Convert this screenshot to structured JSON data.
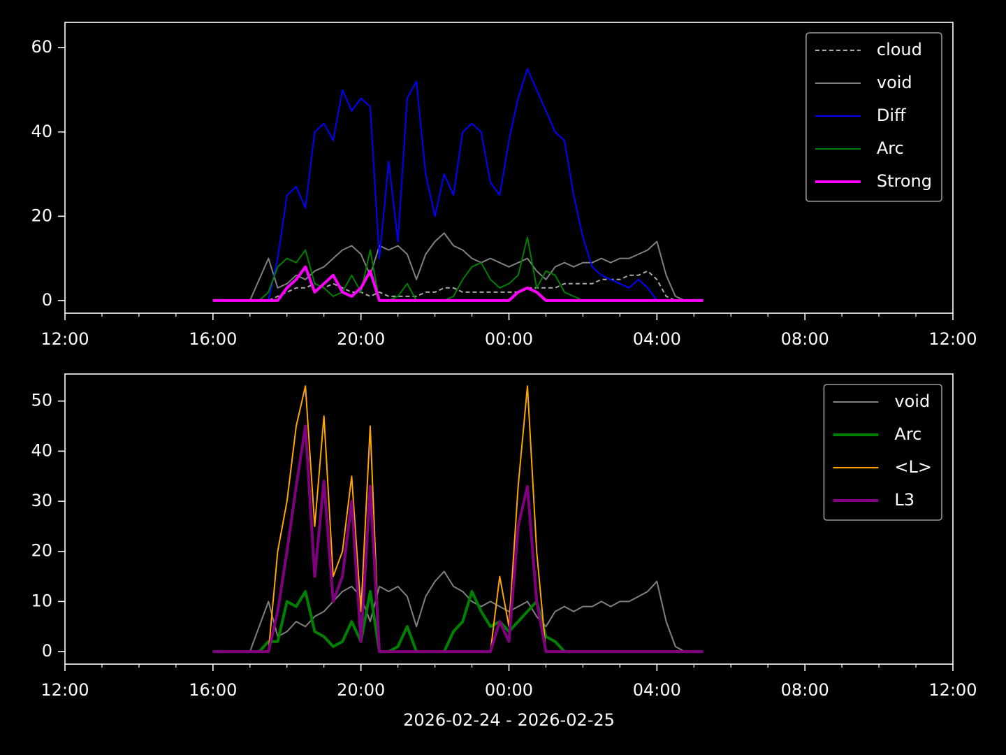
{
  "chart_data": [
    {
      "type": "line",
      "x": [
        4,
        4.25,
        4.5,
        4.75,
        5,
        5.25,
        5.5,
        5.75,
        6,
        6.25,
        6.5,
        6.75,
        7,
        7.25,
        7.5,
        7.75,
        8,
        8.25,
        8.5,
        8.75,
        9,
        9.25,
        9.5,
        9.75,
        10,
        10.25,
        10.5,
        10.75,
        11,
        11.25,
        11.5,
        11.75,
        12,
        12.25,
        12.5,
        12.75,
        13,
        13.25,
        13.5,
        13.75,
        14,
        14.25,
        14.5,
        14.75,
        15,
        15.25,
        15.5,
        15.75,
        16,
        16.25,
        16.5,
        16.75,
        17,
        17.25
      ],
      "series": [
        {
          "name": "cloud",
          "color": "#aaaaaa",
          "linestyle": "dashed",
          "linewidth": 2,
          "values": [
            0,
            0,
            0,
            0,
            0,
            0,
            0,
            1,
            2,
            3,
            3,
            4,
            3,
            4,
            3,
            2,
            2,
            1,
            2,
            1,
            1,
            1,
            1,
            2,
            2,
            3,
            3,
            2,
            2,
            2,
            2,
            2,
            2,
            2,
            3,
            3,
            3,
            3,
            4,
            4,
            4,
            4,
            5,
            5,
            5,
            6,
            6,
            7,
            5,
            1,
            0,
            0,
            0,
            0
          ]
        },
        {
          "name": "void",
          "color": "#808080",
          "linestyle": "solid",
          "linewidth": 2,
          "values": [
            0,
            0,
            0,
            0,
            0,
            5,
            10,
            3,
            4,
            6,
            5,
            7,
            8,
            10,
            12,
            13,
            11,
            6,
            13,
            12,
            13,
            11,
            5,
            11,
            14,
            16,
            13,
            12,
            10,
            9,
            10,
            9,
            8,
            9,
            10,
            7,
            5,
            8,
            9,
            8,
            9,
            9,
            10,
            9,
            10,
            10,
            11,
            12,
            14,
            6,
            1,
            0,
            0,
            0
          ]
        },
        {
          "name": "Diff",
          "color": "#0000ff",
          "linestyle": "solid",
          "linewidth": 2,
          "values": [
            0,
            0,
            0,
            0,
            0,
            0,
            0,
            10,
            25,
            27,
            22,
            40,
            42,
            38,
            50,
            45,
            48,
            46,
            10,
            33,
            14,
            48,
            52,
            30,
            20,
            30,
            25,
            40,
            42,
            40,
            28,
            25,
            38,
            48,
            55,
            50,
            45,
            40,
            38,
            25,
            15,
            8,
            6,
            5,
            4,
            3,
            5,
            3,
            0,
            0,
            0,
            0,
            0,
            0
          ]
        },
        {
          "name": "Arc",
          "color": "#008000",
          "linestyle": "solid",
          "linewidth": 2,
          "values": [
            0,
            0,
            0,
            0,
            0,
            0,
            2,
            8,
            10,
            9,
            12,
            4,
            3,
            1,
            2,
            6,
            2,
            12,
            0,
            0,
            1,
            4,
            0,
            0,
            0,
            0,
            1,
            5,
            8,
            9,
            5,
            3,
            4,
            6,
            15,
            3,
            7,
            6,
            2,
            1,
            0,
            0,
            0,
            0,
            0,
            0,
            0,
            0,
            0,
            0,
            0,
            0,
            0,
            0
          ]
        },
        {
          "name": "Strong",
          "color": "#ff00ff",
          "linestyle": "solid",
          "linewidth": 4,
          "values": [
            0,
            0,
            0,
            0,
            0,
            0,
            0,
            0,
            3,
            5,
            8,
            2,
            4,
            6,
            2,
            1,
            3,
            7,
            0,
            0,
            0,
            0,
            0,
            0,
            0,
            0,
            0,
            0,
            0,
            0,
            0,
            0,
            0,
            2,
            3,
            2,
            0,
            0,
            0,
            0,
            0,
            0,
            0,
            0,
            0,
            0,
            0,
            0,
            0,
            0,
            0,
            0,
            0,
            0
          ]
        }
      ],
      "xlim": [
        0,
        24
      ],
      "xticks": [
        {
          "value": 0,
          "label": "12:00"
        },
        {
          "value": 4,
          "label": "16:00"
        },
        {
          "value": 8,
          "label": "20:00"
        },
        {
          "value": 12,
          "label": "00:00"
        },
        {
          "value": 16,
          "label": "04:00"
        },
        {
          "value": 20,
          "label": "08:00"
        },
        {
          "value": 24,
          "label": "12:00"
        }
      ],
      "xminorticks": [
        1,
        2,
        3,
        5,
        6,
        7,
        9,
        10,
        11,
        13,
        14,
        15,
        17,
        18,
        19,
        21,
        22,
        23
      ],
      "ylim": [
        -3,
        66
      ],
      "yticks": [
        0,
        20,
        40,
        60
      ],
      "legend": "upper right"
    },
    {
      "type": "line",
      "xlabel": "2026-02-24 - 2026-02-25",
      "x": [
        4,
        4.25,
        4.5,
        4.75,
        5,
        5.25,
        5.5,
        5.75,
        6,
        6.25,
        6.5,
        6.75,
        7,
        7.25,
        7.5,
        7.75,
        8,
        8.25,
        8.5,
        8.75,
        9,
        9.25,
        9.5,
        9.75,
        10,
        10.25,
        10.5,
        10.75,
        11,
        11.25,
        11.5,
        11.75,
        12,
        12.25,
        12.5,
        12.75,
        13,
        13.25,
        13.5,
        13.75,
        14,
        14.25,
        14.5,
        14.75,
        15,
        15.25,
        15.5,
        15.75,
        16,
        16.25,
        16.5,
        16.75,
        17,
        17.25
      ],
      "series": [
        {
          "name": "void",
          "color": "#808080",
          "linestyle": "solid",
          "linewidth": 2,
          "values": [
            0,
            0,
            0,
            0,
            0,
            5,
            10,
            3,
            4,
            6,
            5,
            7,
            8,
            10,
            12,
            13,
            11,
            6,
            13,
            12,
            13,
            11,
            5,
            11,
            14,
            16,
            13,
            12,
            10,
            9,
            10,
            9,
            8,
            9,
            10,
            7,
            5,
            8,
            9,
            8,
            9,
            9,
            10,
            9,
            10,
            10,
            11,
            12,
            14,
            6,
            1,
            0,
            0,
            0
          ]
        },
        {
          "name": "Arc",
          "color": "#008000",
          "linestyle": "solid",
          "linewidth": 4,
          "values": [
            0,
            0,
            0,
            0,
            0,
            0,
            2,
            2,
            10,
            9,
            12,
            4,
            3,
            1,
            2,
            6,
            2,
            12,
            0,
            0,
            1,
            5,
            0,
            0,
            0,
            0,
            4,
            6,
            12,
            8,
            5,
            6,
            4,
            6,
            8,
            10,
            3,
            2,
            0,
            0,
            0,
            0,
            0,
            0,
            0,
            0,
            0,
            0,
            0,
            0,
            0,
            0,
            0,
            0
          ]
        },
        {
          "name": "<L>",
          "color": "#ffa500",
          "linestyle": "solid",
          "linewidth": 2,
          "values": [
            0,
            0,
            0,
            0,
            0,
            0,
            0,
            20,
            30,
            45,
            53,
            25,
            47,
            15,
            20,
            35,
            8,
            45,
            0,
            0,
            0,
            0,
            0,
            0,
            0,
            0,
            0,
            0,
            0,
            0,
            0,
            15,
            5,
            33,
            53,
            20,
            0,
            0,
            0,
            0,
            0,
            0,
            0,
            0,
            0,
            0,
            0,
            0,
            0,
            0,
            0,
            0,
            0,
            0
          ]
        },
        {
          "name": "L3",
          "color": "#800080",
          "linestyle": "solid",
          "linewidth": 4,
          "values": [
            0,
            0,
            0,
            0,
            0,
            0,
            0,
            8,
            20,
            33,
            45,
            15,
            34,
            10,
            15,
            30,
            2,
            33,
            0,
            0,
            0,
            0,
            0,
            0,
            0,
            0,
            0,
            0,
            0,
            0,
            0,
            6,
            2,
            25,
            33,
            10,
            0,
            0,
            0,
            0,
            0,
            0,
            0,
            0,
            0,
            0,
            0,
            0,
            0,
            0,
            0,
            0,
            0,
            0
          ]
        }
      ],
      "xlim": [
        0,
        24
      ],
      "xticks": [
        {
          "value": 0,
          "label": "12:00"
        },
        {
          "value": 4,
          "label": "16:00"
        },
        {
          "value": 8,
          "label": "20:00"
        },
        {
          "value": 12,
          "label": "00:00"
        },
        {
          "value": 16,
          "label": "04:00"
        },
        {
          "value": 20,
          "label": "08:00"
        },
        {
          "value": 24,
          "label": "12:00"
        }
      ],
      "xminorticks": [
        1,
        2,
        3,
        5,
        6,
        7,
        9,
        10,
        11,
        13,
        14,
        15,
        17,
        18,
        19,
        21,
        22,
        23
      ],
      "ylim": [
        -2.5,
        55.4
      ],
      "yticks": [
        0,
        10,
        20,
        30,
        40,
        50
      ],
      "legend": "upper right"
    }
  ]
}
